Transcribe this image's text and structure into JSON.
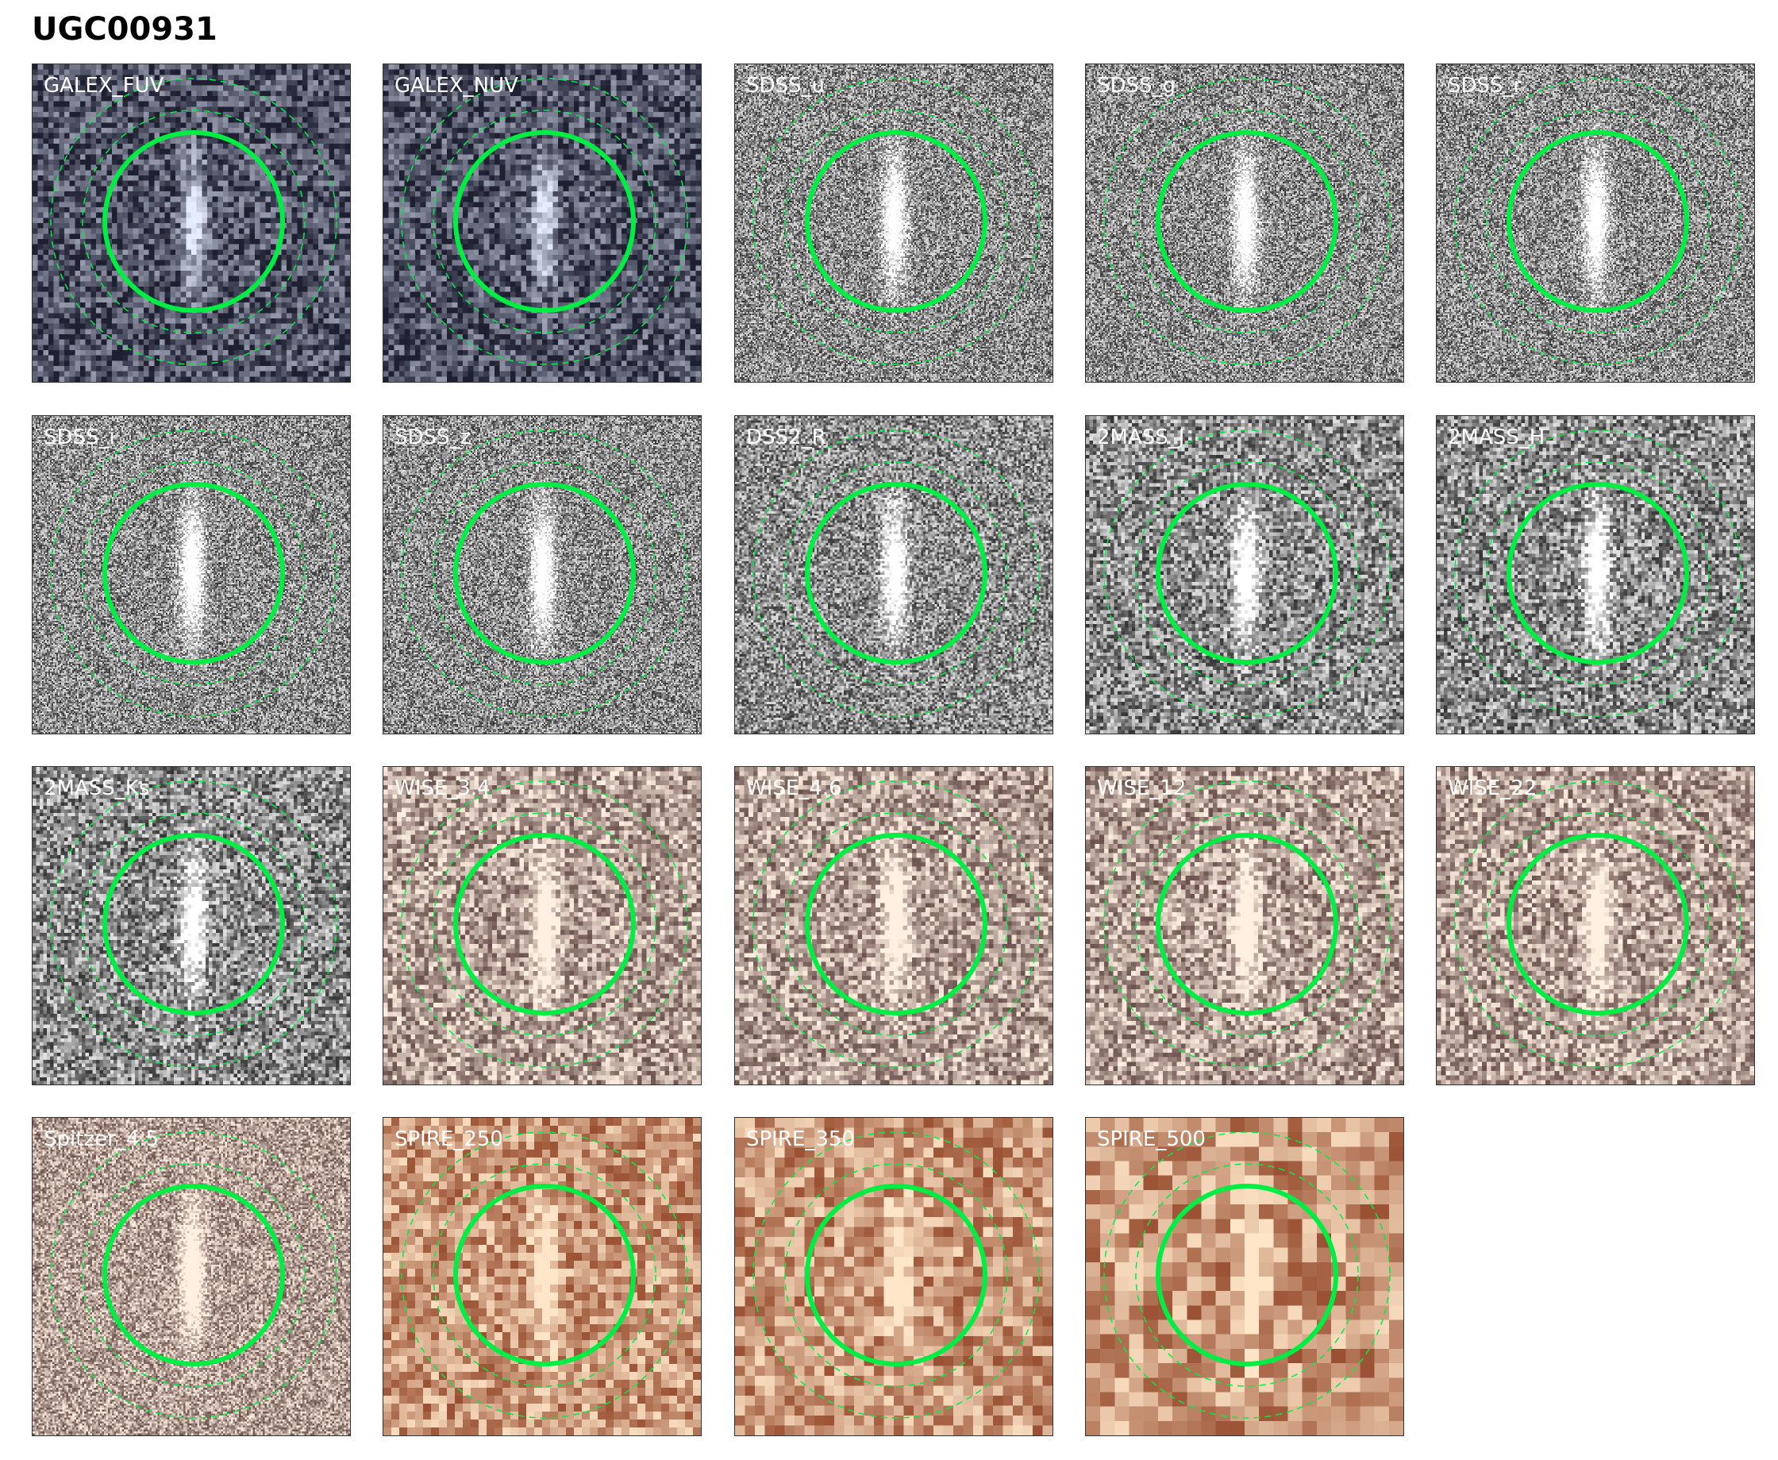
{
  "title": "UGC00931",
  "aperture_color": "#00ee44",
  "panels": [
    {
      "label": "GALEX_FUV",
      "colormap": "bone"
    },
    {
      "label": "GALEX_NUV",
      "colormap": "bone"
    },
    {
      "label": "SDSS_u",
      "colormap": "gray"
    },
    {
      "label": "SDSS_g",
      "colormap": "gray"
    },
    {
      "label": "SDSS_r",
      "colormap": "gray"
    },
    {
      "label": "SDSS_i",
      "colormap": "gray"
    },
    {
      "label": "SDSS_z",
      "colormap": "gray"
    },
    {
      "label": "DSS2_R",
      "colormap": "gray"
    },
    {
      "label": "2MASS_J",
      "colormap": "gray"
    },
    {
      "label": "2MASS_H",
      "colormap": "gray"
    },
    {
      "label": "2MASS_Ks",
      "colormap": "gray"
    },
    {
      "label": "WISE_3.4",
      "colormap": "pink"
    },
    {
      "label": "WISE_4.6",
      "colormap": "pink"
    },
    {
      "label": "WISE_12",
      "colormap": "pink"
    },
    {
      "label": "WISE_22",
      "colormap": "pink"
    },
    {
      "label": "Spitzer_4.5",
      "colormap": "pink"
    },
    {
      "label": "SPIRE_250",
      "colormap": "orange"
    },
    {
      "label": "SPIRE_350",
      "colormap": "orange"
    },
    {
      "label": "SPIRE_500",
      "colormap": "orange"
    }
  ]
}
